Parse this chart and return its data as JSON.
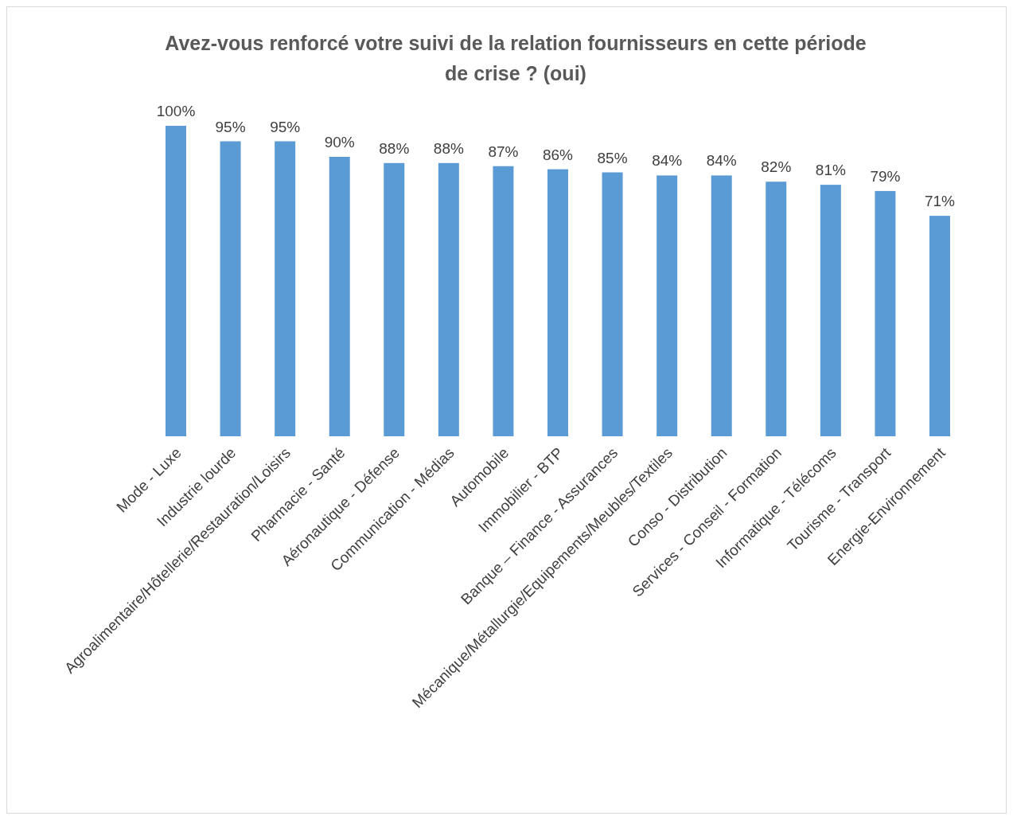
{
  "chart_data": {
    "type": "bar",
    "title": "Avez-vous renforcé votre suivi de la relation fournisseurs en cette période de crise ? (oui)",
    "categories": [
      "Mode - Luxe",
      "Industrie lourde",
      "Agroalimentaire/Hôtellerie/Restauration/Loisirs",
      "Pharmacie - Santé",
      "Aéronautique - Défense",
      "Communication - Médias",
      "Automobile",
      "Immobilier - BTP",
      "Banque – Finance - Assurances",
      "Mécanique/Métallurgie/Equipements/Meubles/Textiles",
      "Conso - Distribution",
      "Services - Conseil - Formation",
      "Informatique - Télécoms",
      "Tourisme - Transport",
      "Energie-Environnement"
    ],
    "values": [
      100,
      95,
      95,
      90,
      88,
      88,
      87,
      86,
      85,
      84,
      84,
      82,
      81,
      79,
      71
    ],
    "value_labels": [
      "100%",
      "95%",
      "95%",
      "90%",
      "88%",
      "88%",
      "87%",
      "86%",
      "85%",
      "84%",
      "84%",
      "82%",
      "81%",
      "79%",
      "71%"
    ],
    "color": "#5b9bd5"
  }
}
